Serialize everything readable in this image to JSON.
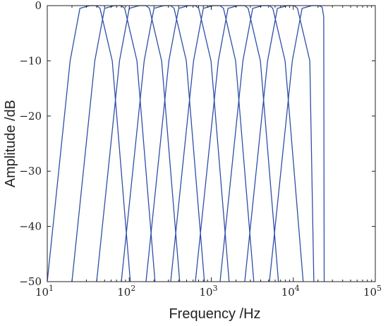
{
  "chart_data": {
    "type": "line",
    "xlabel": "Frequency /Hz",
    "ylabel": "Amplitude /dB",
    "xscale": "log",
    "xlim": [
      10,
      100000
    ],
    "ylim": [
      -50,
      0
    ],
    "x_ticks": [
      {
        "base": "10",
        "exp": "1",
        "value": 10
      },
      {
        "base": "10",
        "exp": "2",
        "value": 100
      },
      {
        "base": "10",
        "exp": "3",
        "value": 1000
      },
      {
        "base": "10",
        "exp": "4",
        "value": 10000
      },
      {
        "base": "10",
        "exp": "5",
        "value": 100000
      }
    ],
    "y_ticks": [
      {
        "label": "0",
        "value": 0
      },
      {
        "label": "−10",
        "value": -10
      },
      {
        "label": "−20",
        "value": -20
      },
      {
        "label": "−30",
        "value": -30
      },
      {
        "label": "−40",
        "value": -40
      },
      {
        "label": "−50",
        "value": -50
      }
    ],
    "grid": false,
    "line_color": "#2f4fa8",
    "series": [
      {
        "x": [
          10,
          19,
          25,
          33,
          40,
          44,
          62,
          103
        ],
        "y": [
          -50,
          -10,
          -0.5,
          0,
          0,
          -0.5,
          -10,
          -50
        ]
      },
      {
        "x": [
          20,
          38,
          50,
          66,
          80,
          88,
          124,
          206
        ],
        "y": [
          -50,
          -10,
          -0.5,
          0,
          0,
          -0.5,
          -10,
          -50
        ]
      },
      {
        "x": [
          40,
          76,
          100,
          132,
          160,
          176,
          248,
          412
        ],
        "y": [
          -50,
          -10,
          -0.5,
          0,
          0,
          -0.5,
          -10,
          -50
        ]
      },
      {
        "x": [
          80,
          152,
          200,
          264,
          320,
          352,
          496,
          824
        ],
        "y": [
          -50,
          -10,
          -0.5,
          0,
          0,
          -0.5,
          -10,
          -50
        ]
      },
      {
        "x": [
          160,
          304,
          400,
          528,
          640,
          704,
          992,
          1650
        ],
        "y": [
          -50,
          -10,
          -0.5,
          0,
          0,
          -0.5,
          -10,
          -50
        ]
      },
      {
        "x": [
          320,
          608,
          800,
          1060,
          1280,
          1410,
          1980,
          3300
        ],
        "y": [
          -50,
          -10,
          -0.5,
          0,
          0,
          -0.5,
          -10,
          -50
        ]
      },
      {
        "x": [
          640,
          1220,
          1600,
          2110,
          2560,
          2820,
          3970,
          6590
        ],
        "y": [
          -50,
          -10,
          -0.5,
          0,
          0,
          -0.5,
          -10,
          -50
        ]
      },
      {
        "x": [
          1280,
          2430,
          3200,
          4220,
          5120,
          5630,
          7940,
          13200
        ],
        "y": [
          -50,
          -10,
          -0.5,
          0,
          0,
          -0.5,
          -10,
          -50
        ]
      },
      {
        "x": [
          2560,
          4860,
          6400,
          8450,
          10240,
          11260,
          15900,
          17800
        ],
        "y": [
          -50,
          -10,
          -0.5,
          0,
          0,
          -0.5,
          -10,
          -50
        ]
      },
      {
        "x": [
          5120,
          9730,
          12800,
          16900,
          20000,
          21300,
          22500,
          23500,
          23800
        ],
        "y": [
          -50,
          -10,
          -0.5,
          0,
          0,
          -0.1,
          -0.3,
          -2,
          -50
        ]
      }
    ]
  }
}
